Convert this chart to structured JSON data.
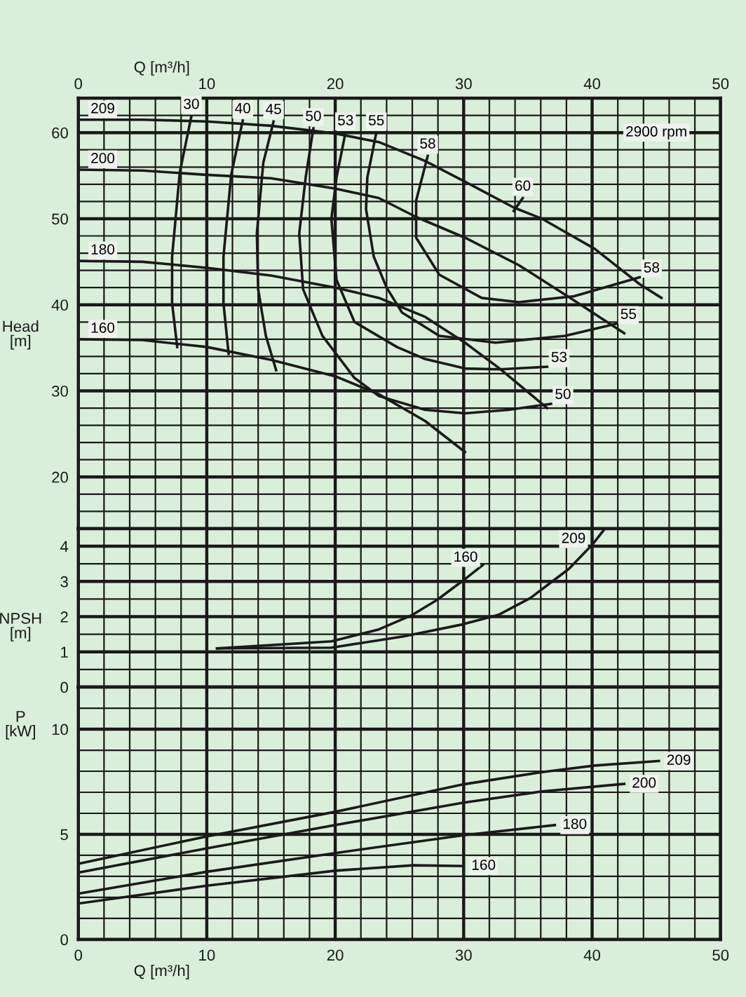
{
  "chart_data": [
    {
      "type": "line",
      "ylabel": "Head\n[m]",
      "x2label": "Q [m³/h]",
      "xlim": [
        0,
        50
      ],
      "x2lim": [
        0,
        50
      ],
      "tick_labels": "y",
      "grid": true,
      "x2ticks": [
        0,
        {
          "value": 2,
          "label": null
        },
        {
          "value": 4,
          "label": null
        },
        {
          "value": 6,
          "label": null
        },
        {
          "value": 8,
          "label": null
        },
        10,
        {
          "value": 12,
          "label": null
        },
        {
          "value": 14,
          "label": null
        },
        {
          "value": 16,
          "label": null
        },
        {
          "value": 18,
          "label": null
        },
        20,
        {
          "value": 22,
          "label": null
        },
        {
          "value": 24,
          "label": null
        },
        {
          "value": 26,
          "label": null
        },
        {
          "value": 28,
          "label": null
        },
        30,
        {
          "value": 32,
          "label": null
        },
        {
          "value": 34,
          "label": null
        },
        {
          "value": 36,
          "label": null
        },
        {
          "value": 38,
          "label": null
        },
        40,
        {
          "value": 42,
          "label": null
        },
        {
          "value": 44,
          "label": null
        },
        {
          "value": 46,
          "label": null
        },
        {
          "value": 48,
          "label": null
        },
        50
      ],
      "ylim": [
        14,
        64
      ],
      "yticks": [
        {
          "value": 16,
          "label": null
        },
        {
          "value": 18,
          "label": null
        },
        20,
        {
          "value": 22,
          "label": null
        },
        {
          "value": 24,
          "label": null
        },
        {
          "value": 26,
          "label": null
        },
        {
          "value": 28,
          "label": null
        },
        30,
        {
          "value": 32,
          "label": null
        },
        {
          "value": 34,
          "label": null
        },
        {
          "value": 36,
          "label": null
        },
        {
          "value": 38,
          "label": null
        },
        40,
        {
          "value": 42,
          "label": null
        },
        {
          "value": 44,
          "label": null
        },
        {
          "value": 46,
          "label": null
        },
        {
          "value": 48,
          "label": null
        },
        50,
        {
          "value": 52,
          "label": null
        },
        {
          "value": 54,
          "label": null
        },
        {
          "value": 56,
          "label": null
        },
        {
          "value": 58,
          "label": null
        },
        60,
        {
          "value": 62,
          "label": null
        }
      ],
      "series": [
        {
          "name": "209",
          "color": "#1a1a1a",
          "x": [
            0,
            5,
            10,
            15,
            20,
            23.4,
            27,
            30.1,
            33.9,
            36.1,
            40.2,
            43.7,
            45.4
          ],
          "values": [
            61.5,
            61.5,
            61.3,
            60.8,
            59.9,
            58.9,
            56.7,
            54.3,
            51.3,
            50.0,
            46.5,
            42.4,
            40.8
          ]
        },
        {
          "name": "200",
          "color": "#1a1a1a",
          "x": [
            0,
            5,
            10,
            15,
            20,
            23.4,
            26.3,
            30.1,
            34.3,
            38.3,
            42.5
          ],
          "values": [
            55.7,
            55.6,
            55.1,
            54.7,
            53.5,
            52.4,
            50.2,
            47.8,
            44.6,
            40.8,
            36.7
          ]
        },
        {
          "name": "180",
          "color": "#1a1a1a",
          "x": [
            0,
            5,
            10,
            15,
            20,
            23.4,
            27,
            30.1,
            32.8,
            36.5
          ],
          "values": [
            45.1,
            45.0,
            44.3,
            43.4,
            42.0,
            40.8,
            38.6,
            35.6,
            32.6,
            28.0
          ]
        },
        {
          "name": "160",
          "color": "#1a1a1a",
          "x": [
            0,
            5,
            10,
            15,
            20,
            23.4,
            27,
            30.1
          ],
          "values": [
            36.0,
            35.9,
            35.1,
            33.6,
            31.7,
            29.6,
            26.5,
            22.9
          ]
        },
        {
          "name": "30",
          "color": "#1a1a1a",
          "x": [
            8.8,
            7.9,
            7.3,
            7.3,
            7.7
          ],
          "values": [
            61.9,
            55.4,
            45.6,
            40.2,
            35.1
          ]
        },
        {
          "name": "40",
          "color": "#1a1a1a",
          "x": [
            12.8,
            11.9,
            11.3,
            11.3,
            11.7
          ],
          "values": [
            61.4,
            55.1,
            45.6,
            40.2,
            34.3
          ]
        },
        {
          "name": "45",
          "color": "#1a1a1a",
          "x": [
            15.2,
            14.4,
            13.9,
            14.0,
            14.6,
            15.4
          ],
          "values": [
            61.3,
            56.5,
            48.3,
            41.8,
            36.4,
            32.4
          ]
        },
        {
          "name": "50",
          "color": "#1a1a1a",
          "x": [
            18.3,
            17.7,
            17.2,
            17.5,
            19.0,
            21.5,
            23.4,
            27.0,
            30.1,
            33.5,
            36.8
          ],
          "values": [
            60.5,
            54.8,
            48.3,
            41.8,
            36.4,
            31.5,
            29.4,
            27.8,
            27.4,
            27.8,
            28.5
          ]
        },
        {
          "name": "53",
          "color": "#1a1a1a",
          "x": [
            20.8,
            20.1,
            19.7,
            20.1,
            21.5,
            24.8,
            27.0,
            30.1,
            32.8,
            36.5
          ],
          "values": [
            60.0,
            54.8,
            50.0,
            42.9,
            38.0,
            35.1,
            33.7,
            32.6,
            32.5,
            32.8
          ]
        },
        {
          "name": "55",
          "color": "#1a1a1a",
          "x": [
            23.2,
            22.5,
            22.4,
            23.0,
            24.0,
            25.2,
            28.1,
            32.5,
            37.9,
            41.9
          ],
          "values": [
            60.0,
            54.8,
            51.1,
            45.6,
            42.0,
            39.1,
            36.4,
            35.6,
            36.4,
            37.8
          ]
        },
        {
          "name": "58",
          "color": "#1a1a1a",
          "x": [
            27.2,
            26.3,
            26.3,
            28.1,
            31.4,
            34.3,
            38.6,
            43.7
          ],
          "values": [
            57.3,
            52.1,
            47.8,
            43.5,
            40.8,
            40.3,
            41.0,
            43.2
          ]
        },
        {
          "name": "60",
          "color": "#1a1a1a",
          "x": [
            34.6,
            33.9
          ],
          "values": [
            52.4,
            50.9
          ]
        }
      ],
      "annotations": [
        "2900 rpm"
      ]
    },
    {
      "type": "line",
      "ylabel": "NPSH\n[m]",
      "xlim": [
        0,
        50
      ],
      "tick_labels": "y",
      "grid": true,
      "xticks": [
        0,
        {
          "value": 2,
          "label": null
        },
        {
          "value": 4,
          "label": null
        },
        {
          "value": 6,
          "label": null
        },
        {
          "value": 8,
          "label": null
        },
        10,
        {
          "value": 12,
          "label": null
        },
        {
          "value": 14,
          "label": null
        },
        {
          "value": 16,
          "label": null
        },
        {
          "value": 18,
          "label": null
        },
        20,
        {
          "value": 22,
          "label": null
        },
        {
          "value": 24,
          "label": null
        },
        {
          "value": 26,
          "label": null
        },
        {
          "value": 28,
          "label": null
        },
        30,
        {
          "value": 32,
          "label": null
        },
        {
          "value": 34,
          "label": null
        },
        {
          "value": 36,
          "label": null
        },
        {
          "value": 38,
          "label": null
        },
        40,
        {
          "value": 42,
          "label": null
        },
        {
          "value": 44,
          "label": null
        },
        {
          "value": 46,
          "label": null
        },
        {
          "value": 48,
          "label": null
        },
        50
      ],
      "ylim": [
        0,
        4.5
      ],
      "yticks": [
        0,
        {
          "value": 0.5,
          "label": null
        },
        1,
        {
          "value": 1.5,
          "label": null
        },
        2,
        {
          "value": 2.5,
          "label": null
        },
        3,
        {
          "value": 3.5,
          "label": null
        },
        4
      ],
      "series": [
        {
          "name": "160",
          "color": "#1a1a1a",
          "x": [
            10.8,
            19.7,
            23.4,
            26.0,
            27.9,
            29.9,
            31.5
          ],
          "values": [
            1.1,
            1.3,
            1.64,
            2.05,
            2.47,
            3.01,
            3.47
          ]
        },
        {
          "name": "209",
          "color": "#1a1a1a",
          "x": [
            10.8,
            19.7,
            25.3,
            29.9,
            32.7,
            35.2,
            38.2,
            40.0,
            41.0
          ],
          "values": [
            1.1,
            1.12,
            1.44,
            1.78,
            2.05,
            2.53,
            3.36,
            4.04,
            4.5
          ]
        }
      ]
    },
    {
      "type": "line",
      "ylabel": "P\n[kW]",
      "xlabel": "Q [m³/h]",
      "xlim": [
        0,
        50
      ],
      "grid": true,
      "xticks": [
        0,
        {
          "value": 2,
          "label": null
        },
        {
          "value": 4,
          "label": null
        },
        {
          "value": 6,
          "label": null
        },
        {
          "value": 8,
          "label": null
        },
        10,
        {
          "value": 12,
          "label": null
        },
        {
          "value": 14,
          "label": null
        },
        {
          "value": 16,
          "label": null
        },
        {
          "value": 18,
          "label": null
        },
        20,
        {
          "value": 22,
          "label": null
        },
        {
          "value": 24,
          "label": null
        },
        {
          "value": 26,
          "label": null
        },
        {
          "value": 28,
          "label": null
        },
        30,
        {
          "value": 32,
          "label": null
        },
        {
          "value": 34,
          "label": null
        },
        {
          "value": 36,
          "label": null
        },
        {
          "value": 38,
          "label": null
        },
        40,
        {
          "value": 42,
          "label": null
        },
        {
          "value": 44,
          "label": null
        },
        {
          "value": 46,
          "label": null
        },
        {
          "value": 48,
          "label": null
        },
        50
      ],
      "ylim": [
        0,
        12
      ],
      "yticks": [
        0,
        {
          "value": 1,
          "label": null
        },
        {
          "value": 2,
          "label": null
        },
        {
          "value": 3,
          "label": null
        },
        {
          "value": 4,
          "label": null
        },
        5,
        {
          "value": 6,
          "label": null
        },
        {
          "value": 7,
          "label": null
        },
        {
          "value": 8,
          "label": null
        },
        {
          "value": 9,
          "label": null
        },
        10,
        {
          "value": 11,
          "label": null
        }
      ],
      "series": [
        {
          "name": "209",
          "color": "#1a1a1a",
          "x": [
            0,
            10,
            20,
            30,
            36.1,
            40.2,
            45.2
          ],
          "values": [
            3.6,
            4.9,
            6.07,
            7.38,
            7.96,
            8.27,
            8.49
          ]
        },
        {
          "name": "200",
          "color": "#1a1a1a",
          "x": [
            0,
            10,
            20,
            30,
            36.1,
            42.5
          ],
          "values": [
            3.18,
            4.33,
            5.44,
            6.51,
            7.04,
            7.4
          ]
        },
        {
          "name": "180",
          "color": "#1a1a1a",
          "x": [
            0,
            10,
            20,
            30,
            37.1
          ],
          "values": [
            2.18,
            3.22,
            4.11,
            4.96,
            5.44
          ]
        },
        {
          "name": "160",
          "color": "#1a1a1a",
          "x": [
            0,
            10,
            20,
            26.1,
            30
          ],
          "values": [
            1.71,
            2.56,
            3.27,
            3.53,
            3.49
          ]
        }
      ]
    }
  ]
}
